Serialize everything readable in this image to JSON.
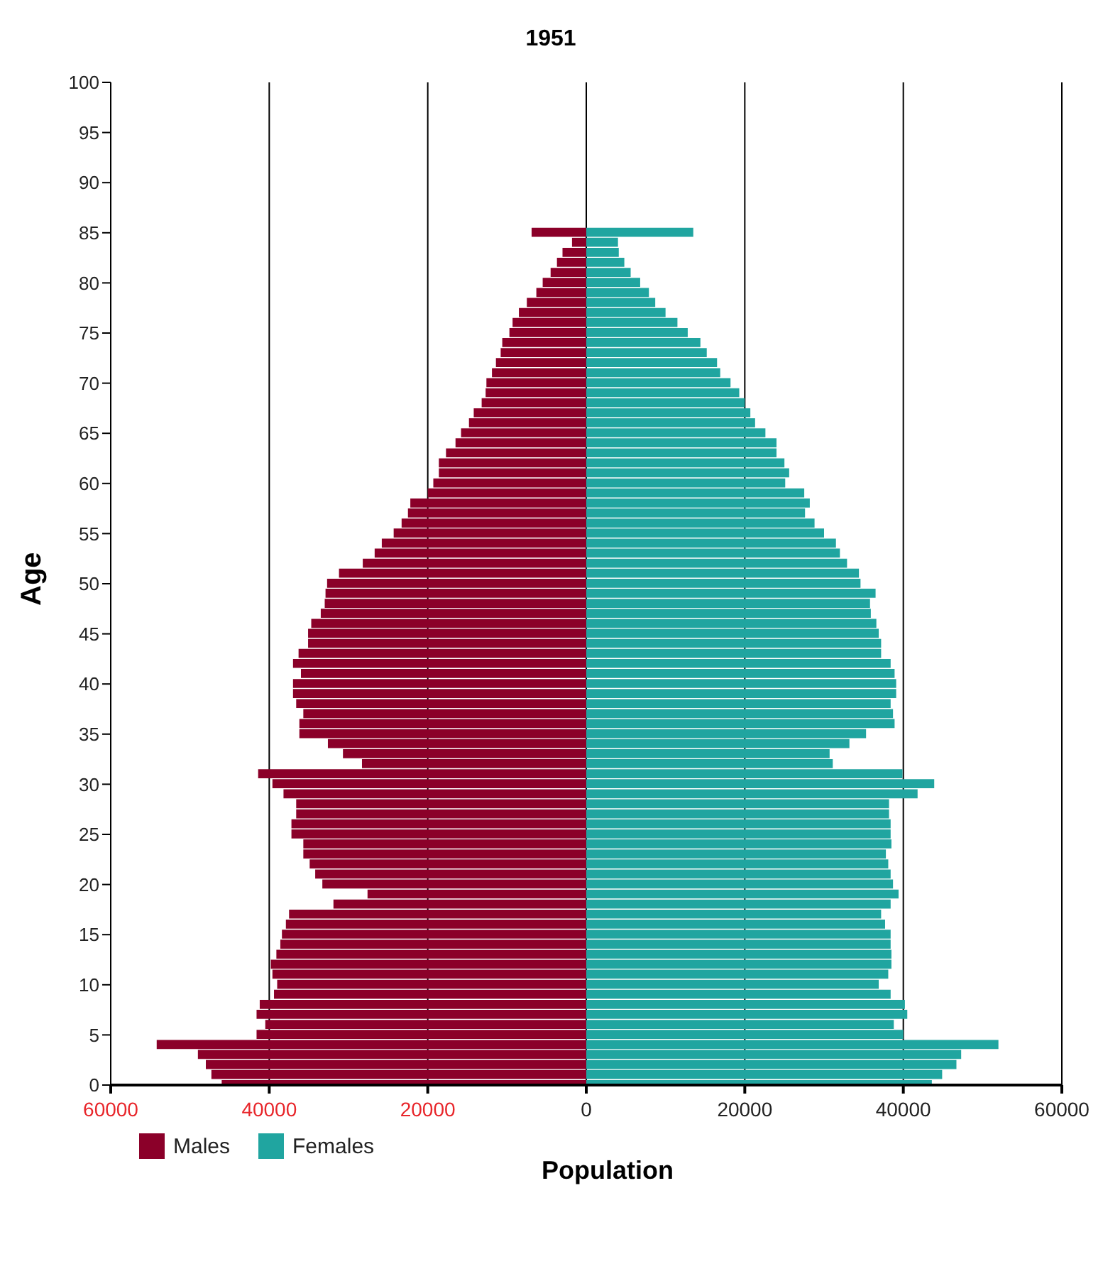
{
  "chart_data": {
    "type": "bar",
    "title": "1951",
    "xlabel": "Population",
    "ylabel": "Age",
    "orientation": "horizontal",
    "stacked": true,
    "x": [
      0,
      1,
      2,
      3,
      4,
      5,
      6,
      7,
      8,
      9,
      10,
      11,
      12,
      13,
      14,
      15,
      16,
      17,
      18,
      19,
      20,
      21,
      22,
      23,
      24,
      25,
      26,
      27,
      28,
      29,
      30,
      31,
      32,
      33,
      34,
      35,
      36,
      37,
      38,
      39,
      40,
      41,
      42,
      43,
      44,
      45,
      46,
      47,
      48,
      49,
      50,
      51,
      52,
      53,
      54,
      55,
      56,
      57,
      58,
      59,
      60,
      61,
      62,
      63,
      64,
      65,
      66,
      67,
      68,
      69,
      70,
      71,
      72,
      73,
      74,
      75,
      76,
      77,
      78,
      79,
      80,
      81,
      82,
      83,
      84,
      85
    ],
    "series": [
      {
        "name": "Males",
        "color": "#8b0029",
        "values": [
          -46000,
          -47300,
          -48000,
          -49000,
          -54200,
          -41600,
          -40500,
          -41600,
          -41200,
          -39400,
          -39000,
          -39600,
          -39800,
          -39100,
          -38600,
          -38400,
          -37900,
          -37500,
          -31900,
          -27600,
          -33300,
          -34200,
          -34900,
          -35700,
          -35700,
          -37200,
          -37200,
          -36600,
          -36600,
          -38200,
          -39600,
          -41400,
          -28300,
          -30700,
          -32600,
          -36200,
          -36200,
          -35700,
          -36600,
          -37000,
          -37000,
          -36000,
          -37000,
          -36300,
          -35100,
          -35100,
          -34700,
          -33500,
          -33000,
          -32900,
          -32700,
          -31200,
          -28200,
          -26700,
          -25800,
          -24300,
          -23300,
          -22500,
          -22200,
          -20000,
          -19300,
          -18600,
          -18600,
          -17700,
          -16500,
          -15800,
          -14800,
          -14200,
          -13200,
          -12700,
          -12600,
          -11900,
          -11400,
          -10800,
          -10600,
          -9700,
          -9300,
          -8500,
          -7500,
          -6300,
          -5500,
          -4500,
          -3700,
          -3000,
          -1800,
          -6900
        ]
      },
      {
        "name": "Females",
        "color": "#20a5a0",
        "values": [
          43600,
          44900,
          46700,
          47300,
          52000,
          40000,
          38800,
          40500,
          40200,
          38400,
          36900,
          38100,
          38500,
          38500,
          38400,
          38400,
          37700,
          37200,
          38400,
          39400,
          38700,
          38400,
          38100,
          37800,
          38500,
          38400,
          38400,
          38200,
          38200,
          41800,
          43900,
          39900,
          31100,
          30700,
          33200,
          35300,
          38900,
          38700,
          38400,
          39100,
          39100,
          38900,
          38400,
          37200,
          37200,
          36900,
          36600,
          35900,
          35800,
          36500,
          34600,
          34400,
          32900,
          32000,
          31500,
          30000,
          28800,
          27600,
          28200,
          27500,
          25100,
          25600,
          25000,
          24000,
          24000,
          22600,
          21300,
          20700,
          20000,
          19300,
          18200,
          16900,
          16500,
          15200,
          14400,
          12800,
          11500,
          10000,
          8700,
          7900,
          6800,
          5600,
          4800,
          4100,
          4000,
          13500
        ]
      }
    ],
    "xlim": [
      -60000,
      60000
    ],
    "xticks": [
      {
        "value": -60000,
        "label": "60000"
      },
      {
        "value": -40000,
        "label": "40000"
      },
      {
        "value": -20000,
        "label": "20000"
      },
      0,
      20000,
      40000,
      60000
    ],
    "ylim": [
      0,
      100
    ],
    "yticks": [
      0,
      5,
      10,
      15,
      20,
      25,
      30,
      35,
      40,
      45,
      50,
      55,
      60,
      65,
      70,
      75,
      80,
      85,
      90,
      95,
      100
    ],
    "grid": "x",
    "legend": "bottom left"
  }
}
